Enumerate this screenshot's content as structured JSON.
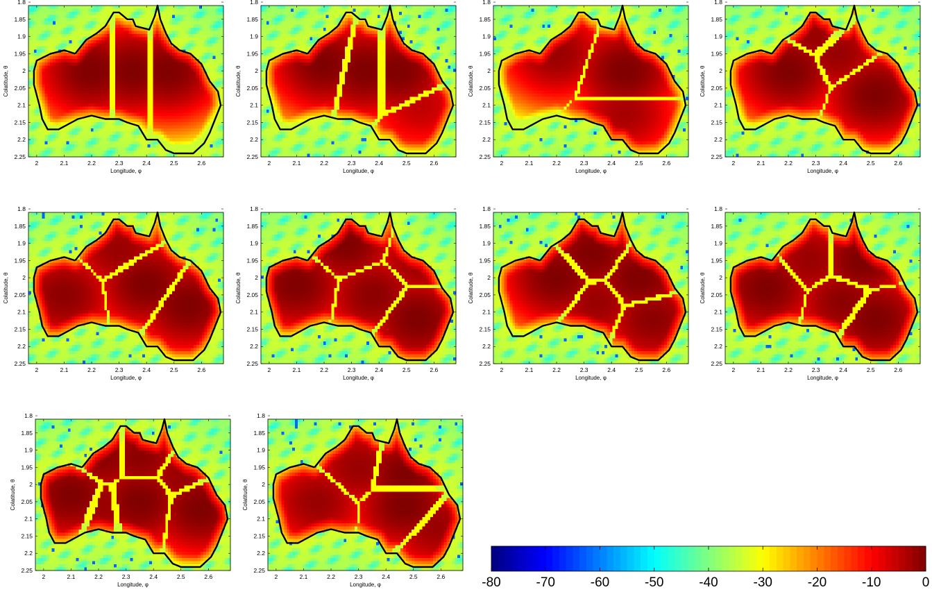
{
  "chart_data": {
    "type": "heatmap",
    "layout": "grid of 10 panels (3 rows)",
    "colormap": "jet",
    "colorbar": {
      "min": -80,
      "max": 0,
      "ticks": [
        -80,
        -70,
        -60,
        -50,
        -40,
        -30,
        -20,
        -10,
        0
      ],
      "placement": "bottom-right"
    },
    "xlabel": "Longitude, φ",
    "ylabel": "Colatitude, θ",
    "xlim": [
      1.97,
      2.68
    ],
    "ylim": [
      1.81,
      2.25
    ],
    "y_reversed": true,
    "xticks": [
      2,
      2.1,
      2.2,
      2.3,
      2.4,
      2.5,
      2.6
    ],
    "yticks": [
      1.8,
      1.85,
      1.9,
      1.95,
      2,
      2.05,
      2.1,
      2.15,
      2.2,
      2.25
    ],
    "grid": false,
    "outline": "Australia (black coastline)",
    "panels": [
      {
        "index": 1,
        "lobes": [
          [
            2.2,
            2.0,
            0
          ],
          [
            2.35,
            2.0,
            0
          ],
          [
            2.48,
            2.0,
            0
          ]
        ]
      },
      {
        "index": 2,
        "lobes": [
          [
            2.2,
            1.98,
            0
          ],
          [
            2.35,
            2.0,
            0
          ],
          [
            2.47,
            2.0,
            0
          ],
          [
            2.55,
            2.1,
            -5
          ]
        ]
      },
      {
        "index": 3,
        "lobes": [
          [
            2.2,
            1.95,
            -2
          ],
          [
            2.45,
            2.0,
            0
          ],
          [
            2.45,
            2.12,
            -3
          ]
        ]
      },
      {
        "index": 4,
        "lobes": [
          [
            2.2,
            2.0,
            0
          ],
          [
            2.3,
            1.9,
            -2
          ],
          [
            2.38,
            1.95,
            -2
          ],
          [
            2.52,
            2.07,
            0
          ]
        ]
      },
      {
        "index": 5,
        "lobes": [
          [
            2.1,
            2.05,
            -1
          ],
          [
            2.3,
            1.92,
            -2
          ],
          [
            2.4,
            2.02,
            0
          ],
          [
            2.55,
            2.08,
            0
          ]
        ]
      },
      {
        "index": 6,
        "lobes": [
          [
            2.1,
            2.02,
            0
          ],
          [
            2.28,
            1.9,
            0
          ],
          [
            2.38,
            2.05,
            -1
          ],
          [
            2.54,
            2.12,
            0
          ],
          [
            2.55,
            1.95,
            -2
          ]
        ]
      },
      {
        "index": 7,
        "lobes": [
          [
            2.2,
            2.0,
            0
          ],
          [
            2.33,
            1.93,
            0
          ],
          [
            2.35,
            2.07,
            -2
          ],
          [
            2.5,
            2.0,
            0
          ],
          [
            2.55,
            2.12,
            -1
          ]
        ]
      },
      {
        "index": 8,
        "lobes": [
          [
            2.12,
            2.03,
            0
          ],
          [
            2.28,
            1.95,
            -2
          ],
          [
            2.47,
            1.95,
            0
          ],
          [
            2.52,
            2.12,
            0
          ],
          [
            2.4,
            2.07,
            -1
          ]
        ]
      },
      {
        "index": 9,
        "lobes": [
          [
            2.1,
            2.03,
            0
          ],
          [
            2.22,
            1.92,
            -1
          ],
          [
            2.22,
            2.06,
            -2
          ],
          [
            2.35,
            2.05,
            0
          ],
          [
            2.35,
            1.92,
            -1
          ],
          [
            2.5,
            1.98,
            -2
          ],
          [
            2.57,
            2.07,
            0
          ]
        ]
      },
      {
        "index": 10,
        "lobes": [
          [
            2.15,
            2.05,
            -2
          ],
          [
            2.3,
            1.95,
            -2
          ],
          [
            2.47,
            1.97,
            0
          ],
          [
            2.47,
            2.06,
            0
          ],
          [
            2.58,
            2.12,
            -2
          ]
        ]
      }
    ]
  }
}
